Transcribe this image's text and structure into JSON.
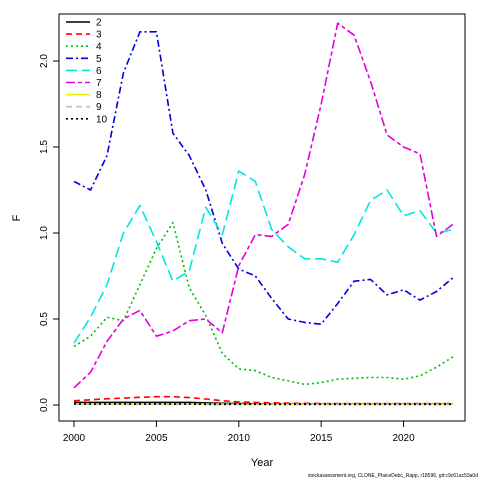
{
  "chart_data": {
    "type": "line",
    "xlabel": "Year",
    "ylabel": "F",
    "xlim": [
      2000,
      2023
    ],
    "ylim": [
      0,
      2.25
    ],
    "xticks": [
      2000,
      2005,
      2010,
      2015,
      2020
    ],
    "yticks": [
      0.0,
      0.5,
      1.0,
      1.5,
      2.0
    ],
    "ytick_labels": [
      "0.0",
      "0.5",
      "1.0",
      "1.5",
      "2.0"
    ],
    "grid": false,
    "legend_position": "top-left",
    "footer": "stockassessment.org, CLONE_PlaiceDebc_Rapp, r18596, git:c9c61ac53a0d",
    "x": [
      2000,
      2001,
      2002,
      2003,
      2004,
      2005,
      2006,
      2007,
      2008,
      2009,
      2010,
      2011,
      2012,
      2013,
      2014,
      2015,
      2016,
      2017,
      2018,
      2019,
      2020,
      2021,
      2022,
      2023
    ],
    "series": [
      {
        "name": "2",
        "color": "#000000",
        "dash": "solid",
        "values": [
          0.015,
          0.015,
          0.015,
          0.015,
          0.015,
          0.015,
          0.015,
          0.015,
          0.012,
          0.01,
          0.008,
          0.007,
          0.006,
          0.006,
          0.005,
          0.005,
          0.005,
          0.005,
          0.005,
          0.005,
          0.005,
          0.005,
          0.005,
          0.005
        ]
      },
      {
        "name": "3",
        "color": "#ff0000",
        "dash": "dashed",
        "values": [
          0.025,
          0.03,
          0.036,
          0.04,
          0.045,
          0.048,
          0.048,
          0.043,
          0.035,
          0.025,
          0.018,
          0.015,
          0.013,
          0.011,
          0.01,
          0.009,
          0.009,
          0.009,
          0.008,
          0.008,
          0.008,
          0.008,
          0.008,
          0.008
        ]
      },
      {
        "name": "4",
        "color": "#00bb00",
        "dash": "dotted",
        "values": [
          0.34,
          0.4,
          0.51,
          0.49,
          0.7,
          0.91,
          1.06,
          0.68,
          0.52,
          0.3,
          0.21,
          0.2,
          0.16,
          0.14,
          0.12,
          0.13,
          0.15,
          0.155,
          0.16,
          0.16,
          0.15,
          0.17,
          0.22,
          0.28
        ]
      },
      {
        "name": "5",
        "color": "#0000dd",
        "dash": "dashdot",
        "values": [
          1.3,
          1.25,
          1.45,
          1.93,
          2.17,
          2.17,
          1.58,
          1.45,
          1.25,
          0.94,
          0.79,
          0.75,
          0.62,
          0.5,
          0.48,
          0.47,
          0.59,
          0.72,
          0.73,
          0.64,
          0.67,
          0.61,
          0.66,
          0.74
        ]
      },
      {
        "name": "6",
        "color": "#00e5e5",
        "dash": "longdash",
        "values": [
          0.36,
          0.51,
          0.7,
          1.0,
          1.16,
          0.95,
          0.72,
          0.78,
          1.15,
          0.99,
          1.36,
          1.3,
          1.02,
          0.92,
          0.85,
          0.85,
          0.83,
          0.99,
          1.19,
          1.25,
          1.1,
          1.13,
          1.0,
          1.02
        ]
      },
      {
        "name": "7",
        "color": "#e000e0",
        "dash": "twodash",
        "values": [
          0.1,
          0.19,
          0.37,
          0.5,
          0.55,
          0.4,
          0.43,
          0.49,
          0.5,
          0.42,
          0.81,
          0.99,
          0.98,
          1.05,
          1.34,
          1.75,
          2.22,
          2.15,
          1.88,
          1.57,
          1.5,
          1.46,
          0.98,
          1.05
        ]
      },
      {
        "name": "8",
        "color": "#eeee00",
        "dash": "solid",
        "values": [
          0.006,
          0.006,
          0.006,
          0.006,
          0.006,
          0.006,
          0.006,
          0.006,
          0.005,
          0.005,
          0.004,
          0.004,
          0.004,
          0.004,
          0.004,
          0.004,
          0.004,
          0.004,
          0.004,
          0.004,
          0.004,
          0.004,
          0.004,
          0.004
        ]
      },
      {
        "name": "9",
        "color": "#bebebe",
        "dash": "dashed",
        "values": [
          0.004,
          0.004,
          0.004,
          0.004,
          0.004,
          0.004,
          0.004,
          0.004,
          0.003,
          0.003,
          0.003,
          0.003,
          0.003,
          0.003,
          0.003,
          0.003,
          0.003,
          0.003,
          0.003,
          0.003,
          0.003,
          0.003,
          0.003,
          0.003
        ]
      },
      {
        "name": "10",
        "color": "#000000",
        "dash": "dotted",
        "values": [
          0.005,
          0.005,
          0.005,
          0.005,
          0.005,
          0.005,
          0.005,
          0.005,
          0.004,
          0.004,
          0.004,
          0.004,
          0.004,
          0.004,
          0.004,
          0.004,
          0.004,
          0.004,
          0.004,
          0.004,
          0.004,
          0.004,
          0.004,
          0.004
        ]
      }
    ]
  }
}
